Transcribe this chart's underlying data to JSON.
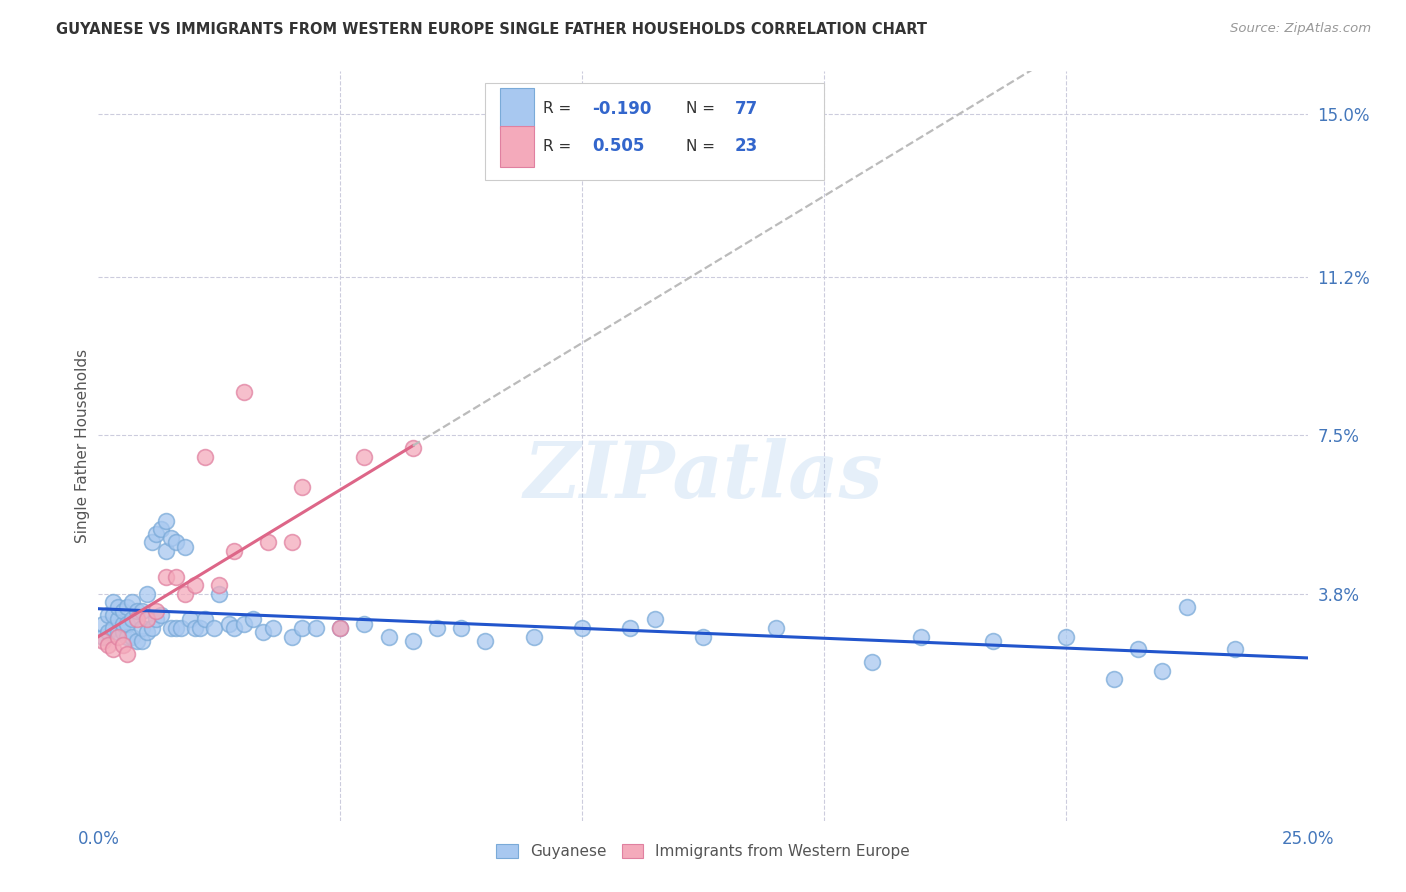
{
  "title": "GUYANESE VS IMMIGRANTS FROM WESTERN EUROPE SINGLE FATHER HOUSEHOLDS CORRELATION CHART",
  "source": "Source: ZipAtlas.com",
  "ylabel": "Single Father Households",
  "xlim": [
    0.0,
    0.25
  ],
  "ylim": [
    -0.015,
    0.16
  ],
  "ytick_positions": [
    0.038,
    0.075,
    0.112,
    0.15
  ],
  "ytick_labels": [
    "3.8%",
    "7.5%",
    "11.2%",
    "15.0%"
  ],
  "blue_color": "#A8C8F0",
  "blue_edge_color": "#7AAAD8",
  "pink_color": "#F4AABB",
  "pink_edge_color": "#E080A0",
  "blue_line_color": "#2255CC",
  "pink_line_color": "#DD6688",
  "dash_color": "#BBBBBB",
  "grid_color": "#CCCCDD",
  "background_color": "#FFFFFF",
  "watermark_color": "#AACCEE",
  "legend_R_blue": "-0.190",
  "legend_N_blue": "77",
  "legend_R_pink": "0.505",
  "legend_N_pink": "23",
  "blue_points_x": [
    0.001,
    0.001,
    0.002,
    0.002,
    0.003,
    0.003,
    0.003,
    0.004,
    0.004,
    0.004,
    0.005,
    0.005,
    0.005,
    0.006,
    0.006,
    0.006,
    0.007,
    0.007,
    0.007,
    0.008,
    0.008,
    0.009,
    0.009,
    0.009,
    0.01,
    0.01,
    0.011,
    0.011,
    0.012,
    0.012,
    0.013,
    0.013,
    0.014,
    0.014,
    0.015,
    0.015,
    0.016,
    0.016,
    0.017,
    0.018,
    0.019,
    0.02,
    0.021,
    0.022,
    0.024,
    0.025,
    0.027,
    0.028,
    0.03,
    0.032,
    0.034,
    0.036,
    0.04,
    0.042,
    0.045,
    0.05,
    0.055,
    0.06,
    0.065,
    0.07,
    0.075,
    0.08,
    0.09,
    0.1,
    0.11,
    0.115,
    0.125,
    0.14,
    0.16,
    0.17,
    0.185,
    0.2,
    0.21,
    0.215,
    0.22,
    0.225,
    0.235
  ],
  "blue_points_y": [
    0.028,
    0.031,
    0.029,
    0.033,
    0.03,
    0.033,
    0.036,
    0.029,
    0.032,
    0.035,
    0.029,
    0.031,
    0.034,
    0.028,
    0.031,
    0.035,
    0.028,
    0.032,
    0.036,
    0.027,
    0.034,
    0.027,
    0.03,
    0.034,
    0.029,
    0.038,
    0.03,
    0.05,
    0.032,
    0.052,
    0.033,
    0.053,
    0.048,
    0.055,
    0.03,
    0.051,
    0.03,
    0.05,
    0.03,
    0.049,
    0.032,
    0.03,
    0.03,
    0.032,
    0.03,
    0.038,
    0.031,
    0.03,
    0.031,
    0.032,
    0.029,
    0.03,
    0.028,
    0.03,
    0.03,
    0.03,
    0.031,
    0.028,
    0.027,
    0.03,
    0.03,
    0.027,
    0.028,
    0.03,
    0.03,
    0.032,
    0.028,
    0.03,
    0.022,
    0.028,
    0.027,
    0.028,
    0.018,
    0.025,
    0.02,
    0.035,
    0.025
  ],
  "pink_points_x": [
    0.001,
    0.002,
    0.003,
    0.004,
    0.005,
    0.006,
    0.008,
    0.01,
    0.012,
    0.014,
    0.016,
    0.018,
    0.02,
    0.022,
    0.025,
    0.028,
    0.03,
    0.035,
    0.04,
    0.042,
    0.05,
    0.055,
    0.065
  ],
  "pink_points_y": [
    0.027,
    0.026,
    0.025,
    0.028,
    0.026,
    0.024,
    0.032,
    0.032,
    0.034,
    0.042,
    0.042,
    0.038,
    0.04,
    0.07,
    0.04,
    0.048,
    0.085,
    0.05,
    0.05,
    0.063,
    0.03,
    0.07,
    0.072
  ]
}
